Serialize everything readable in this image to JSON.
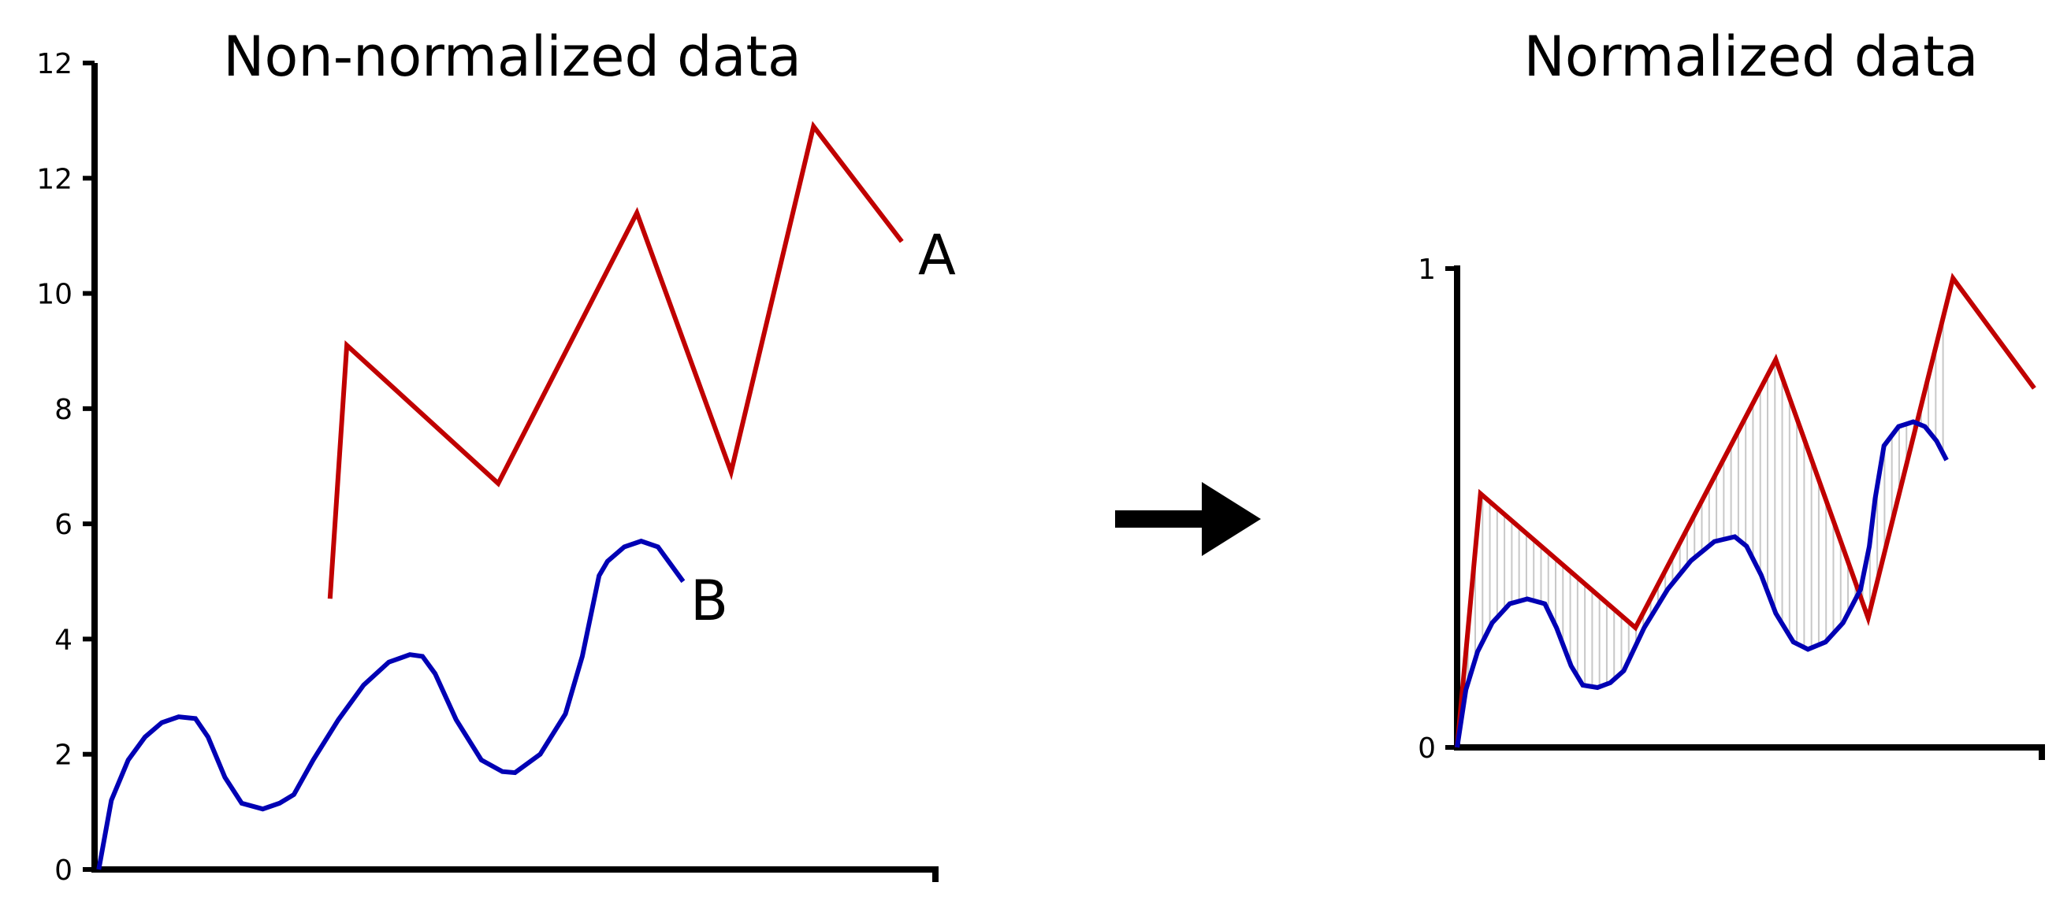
{
  "colors": {
    "series_a": "#c00000",
    "series_b": "#0000b4",
    "hatch": "#c8c8c8",
    "arrow": "#000000"
  },
  "arrow_icon": "right-arrow-icon",
  "chart_data": [
    {
      "type": "line",
      "title": "Non-normalized data",
      "xlabel": "",
      "ylabel": "",
      "y_tick_labels": [
        "0",
        "2",
        "4",
        "6",
        "8",
        "10",
        "12",
        "12"
      ],
      "ylim": [
        0,
        14
      ],
      "xlim": [
        0,
        1
      ],
      "grid": false,
      "series": [
        {
          "name": "A",
          "points": [
            [
              0.28,
              4.7
            ],
            [
              0.3,
              9.1
            ],
            [
              0.48,
              6.7
            ],
            [
              0.645,
              11.4
            ],
            [
              0.757,
              6.9
            ],
            [
              0.855,
              12.9
            ],
            [
              0.96,
              10.9
            ]
          ]
        },
        {
          "name": "B",
          "points": [
            [
              0.005,
              0.0
            ],
            [
              0.02,
              1.2
            ],
            [
              0.04,
              1.9
            ],
            [
              0.06,
              2.3
            ],
            [
              0.08,
              2.55
            ],
            [
              0.1,
              2.65
            ],
            [
              0.12,
              2.62
            ],
            [
              0.135,
              2.3
            ],
            [
              0.155,
              1.6
            ],
            [
              0.175,
              1.15
            ],
            [
              0.2,
              1.05
            ],
            [
              0.22,
              1.15
            ],
            [
              0.237,
              1.3
            ],
            [
              0.26,
              1.9
            ],
            [
              0.29,
              2.6
            ],
            [
              0.32,
              3.2
            ],
            [
              0.35,
              3.6
            ],
            [
              0.375,
              3.73
            ],
            [
              0.39,
              3.7
            ],
            [
              0.405,
              3.4
            ],
            [
              0.43,
              2.6
            ],
            [
              0.46,
              1.9
            ],
            [
              0.485,
              1.7
            ],
            [
              0.5,
              1.68
            ],
            [
              0.53,
              2.0
            ],
            [
              0.56,
              2.7
            ],
            [
              0.58,
              3.7
            ],
            [
              0.6,
              5.1
            ],
            [
              0.61,
              5.35
            ],
            [
              0.63,
              5.6
            ],
            [
              0.65,
              5.7
            ],
            [
              0.67,
              5.6
            ],
            [
              0.685,
              5.3
            ],
            [
              0.7,
              5.0
            ]
          ]
        }
      ]
    },
    {
      "type": "line",
      "title": "Normalized data",
      "xlabel": "",
      "ylabel": "",
      "y_tick_labels": [
        "0",
        "1"
      ],
      "ylim": [
        0,
        1
      ],
      "xlim": [
        0,
        1
      ],
      "grid": false,
      "series": [
        {
          "points": [
            [
              0.0,
              0.0
            ],
            [
              0.04,
              0.53
            ],
            [
              0.305,
              0.25
            ],
            [
              0.545,
              0.81
            ],
            [
              0.703,
              0.27
            ],
            [
              0.848,
              0.98
            ],
            [
              0.987,
              0.75
            ]
          ]
        },
        {
          "points": [
            [
              0.0,
              0.0
            ],
            [
              0.015,
              0.12
            ],
            [
              0.035,
              0.2
            ],
            [
              0.06,
              0.26
            ],
            [
              0.09,
              0.3
            ],
            [
              0.12,
              0.31
            ],
            [
              0.15,
              0.3
            ],
            [
              0.17,
              0.25
            ],
            [
              0.195,
              0.17
            ],
            [
              0.215,
              0.13
            ],
            [
              0.24,
              0.125
            ],
            [
              0.262,
              0.135
            ],
            [
              0.285,
              0.16
            ],
            [
              0.32,
              0.25
            ],
            [
              0.36,
              0.33
            ],
            [
              0.4,
              0.39
            ],
            [
              0.44,
              0.43
            ],
            [
              0.475,
              0.44
            ],
            [
              0.495,
              0.42
            ],
            [
              0.52,
              0.36
            ],
            [
              0.545,
              0.28
            ],
            [
              0.575,
              0.22
            ],
            [
              0.6,
              0.205
            ],
            [
              0.63,
              0.22
            ],
            [
              0.66,
              0.26
            ],
            [
              0.69,
              0.33
            ],
            [
              0.705,
              0.42
            ],
            [
              0.715,
              0.52
            ],
            [
              0.73,
              0.63
            ],
            [
              0.755,
              0.67
            ],
            [
              0.78,
              0.68
            ],
            [
              0.8,
              0.67
            ],
            [
              0.82,
              0.64
            ],
            [
              0.837,
              0.6
            ]
          ]
        }
      ]
    }
  ]
}
